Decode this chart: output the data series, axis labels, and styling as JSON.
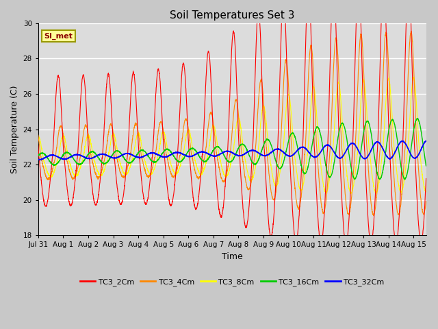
{
  "title": "Soil Temperatures Set 3",
  "xlabel": "Time",
  "ylabel": "Soil Temperature (C)",
  "ylim": [
    18,
    30
  ],
  "yticks": [
    18,
    20,
    22,
    24,
    26,
    28,
    30
  ],
  "xlim_days": [
    0,
    15.5
  ],
  "xtick_labels": [
    "Jul 31",
    "Aug 1",
    "Aug 2",
    "Aug 3",
    "Aug 4",
    "Aug 5",
    "Aug 6",
    "Aug 7",
    "Aug 8",
    "Aug 9",
    "Aug 10",
    "Aug 11",
    "Aug 12",
    "Aug 13",
    "Aug 14",
    "Aug 15"
  ],
  "xtick_positions": [
    0,
    1,
    2,
    3,
    4,
    5,
    6,
    7,
    8,
    9,
    10,
    11,
    12,
    13,
    14,
    15
  ],
  "colors": {
    "TC3_2Cm": "#ff0000",
    "TC3_4Cm": "#ff8800",
    "TC3_8Cm": "#ffff00",
    "TC3_16Cm": "#00cc00",
    "TC3_32Cm": "#0000ff"
  },
  "legend_label": "SI_met",
  "bg_color": "#dcdcdc",
  "grid_color": "#ffffff",
  "n_points": 3000
}
